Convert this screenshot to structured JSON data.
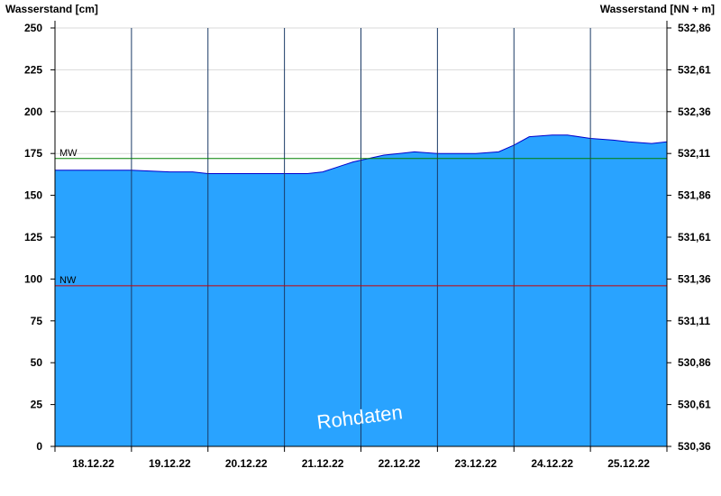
{
  "chart_data": {
    "type": "area",
    "ylabel_left": "Wasserstand [cm]",
    "ylabel_right": "Wasserstand [NN + m]",
    "ylim": [
      0,
      250
    ],
    "y_ticks_left": [
      "0",
      "25",
      "50",
      "75",
      "100",
      "125",
      "150",
      "175",
      "200",
      "225",
      "250"
    ],
    "y_ticks_right": [
      "530,36",
      "530,61",
      "530,86",
      "531,11",
      "531,36",
      "531,61",
      "531,86",
      "532,11",
      "532,36",
      "532,61",
      "532,86"
    ],
    "x_tick_labels": [
      "18.12.22",
      "19.12.22",
      "20.12.22",
      "21.12.22",
      "22.12.22",
      "23.12.22",
      "24.12.22",
      "25.12.22"
    ],
    "x_range_days": [
      0,
      8
    ],
    "grid": true,
    "reference_lines": [
      {
        "name": "MW",
        "value": 172,
        "color": "#008000"
      },
      {
        "name": "NW",
        "value": 96,
        "color": "#cc0000"
      }
    ],
    "series": [
      {
        "fill_color": "#29a3ff",
        "edge_color": "#0000cc",
        "x": [
          0,
          0.15,
          0.2,
          1.0,
          1.5,
          1.8,
          2.0,
          2.5,
          3.0,
          3.3,
          3.5,
          3.7,
          3.9,
          4.1,
          4.3,
          4.5,
          4.7,
          5.0,
          5.3,
          5.5,
          5.8,
          6.0,
          6.2,
          6.5,
          6.7,
          7.0,
          7.3,
          7.5,
          7.8,
          8.0
        ],
        "values": [
          165,
          165,
          165,
          165,
          164,
          164,
          163,
          163,
          163,
          163,
          164,
          167,
          170,
          172,
          174,
          175,
          176,
          175,
          175,
          175,
          176,
          180,
          185,
          186,
          186,
          184,
          183,
          182,
          181,
          182
        ]
      }
    ],
    "watermark": "Rohdaten"
  }
}
